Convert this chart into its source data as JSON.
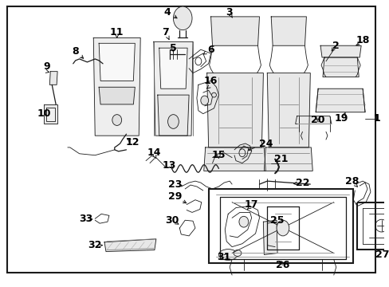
{
  "bg_color": "#ffffff",
  "border_color": "#000000",
  "text_color": "#000000",
  "fig_width": 4.89,
  "fig_height": 3.6,
  "dpi": 100
}
